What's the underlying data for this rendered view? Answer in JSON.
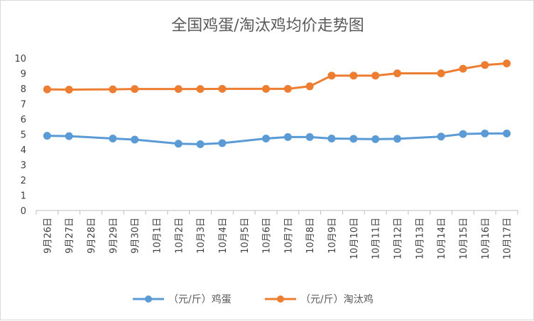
{
  "chart_data": {
    "type": "line",
    "title": "全国鸡蛋/淘汰鸡均价走势图",
    "categories": [
      "9月26日",
      "9月27日",
      "9月28日",
      "9月29日",
      "9月30日",
      "10月1日",
      "10月2日",
      "10月3日",
      "10月4日",
      "10月5日",
      "10月6日",
      "10月7日",
      "10月8日",
      "10月9日",
      "10月10日",
      "10月11日",
      "10月12日",
      "10月13日",
      "10月14日",
      "10月15日",
      "10月16日",
      "10月17日"
    ],
    "series": [
      {
        "name": "（元/斤）鸡蛋",
        "color": "#5b9bd5",
        "values": [
          4.9,
          4.88,
          null,
          4.72,
          4.65,
          null,
          4.38,
          4.35,
          4.42,
          null,
          4.72,
          4.82,
          4.82,
          4.72,
          4.7,
          4.68,
          4.7,
          null,
          4.85,
          5.02,
          5.05,
          5.05
        ]
      },
      {
        "name": "（元/斤）淘汰鸡",
        "color": "#ed7d31",
        "values": [
          7.95,
          7.93,
          null,
          7.95,
          7.97,
          null,
          7.97,
          7.97,
          7.98,
          null,
          7.98,
          7.98,
          8.15,
          8.85,
          8.85,
          8.85,
          9.0,
          null,
          9.0,
          9.3,
          9.55,
          9.65
        ]
      }
    ],
    "ylim": [
      0,
      10
    ],
    "yticks": [
      0,
      1,
      2,
      3,
      4,
      5,
      6,
      7,
      8,
      9,
      10
    ],
    "grid": false,
    "legend_position": "bottom"
  }
}
